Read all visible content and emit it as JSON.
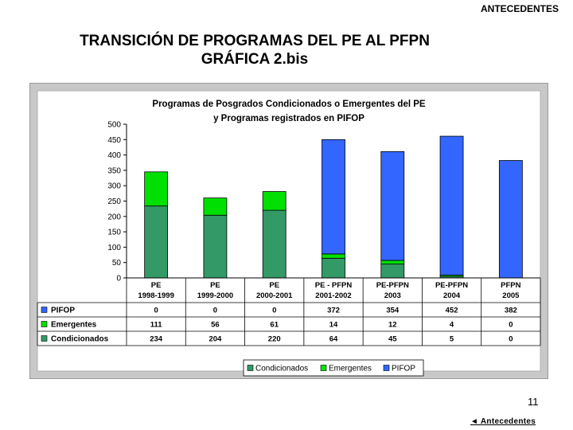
{
  "header": {
    "section": "ANTECEDENTES"
  },
  "slide": {
    "title_line1": "TRANSICIÓN DE PROGRAMAS DEL PE AL PFPN",
    "title_line2": "GRÁFICA 2.bis",
    "page_number": "11",
    "back_link": "◄ Antecedentes"
  },
  "chart_data": {
    "type": "bar",
    "stacked": true,
    "title_line1": "Programas de Posgrados Condicionados o Emergentes del PE",
    "title_line2": "y Programas registrados en PIFOP",
    "categories": [
      [
        "PE",
        "1998-1999"
      ],
      [
        "PE",
        "1999-2000"
      ],
      [
        "PE",
        "2000-2001"
      ],
      [
        "PE - PFPN",
        "2001-2002"
      ],
      [
        "PE-PFPN",
        "2003"
      ],
      [
        "PE-PFPN",
        "2004"
      ],
      [
        "PFPN",
        "2005"
      ]
    ],
    "series": [
      {
        "name": "Condicionados",
        "color": "#339966",
        "values": [
          234,
          204,
          220,
          64,
          45,
          5,
          0
        ]
      },
      {
        "name": "Emergentes",
        "color": "#00e000",
        "values": [
          111,
          56,
          61,
          14,
          12,
          4,
          0
        ]
      },
      {
        "name": "PIFOP",
        "color": "#3366ff",
        "values": [
          0,
          0,
          0,
          372,
          354,
          452,
          382
        ]
      }
    ],
    "ylim": [
      0,
      500
    ],
    "yticks": [
      0,
      50,
      100,
      150,
      200,
      250,
      300,
      350,
      400,
      450,
      500
    ],
    "grid": false,
    "legend_position": "bottom",
    "has_data_table": true
  }
}
